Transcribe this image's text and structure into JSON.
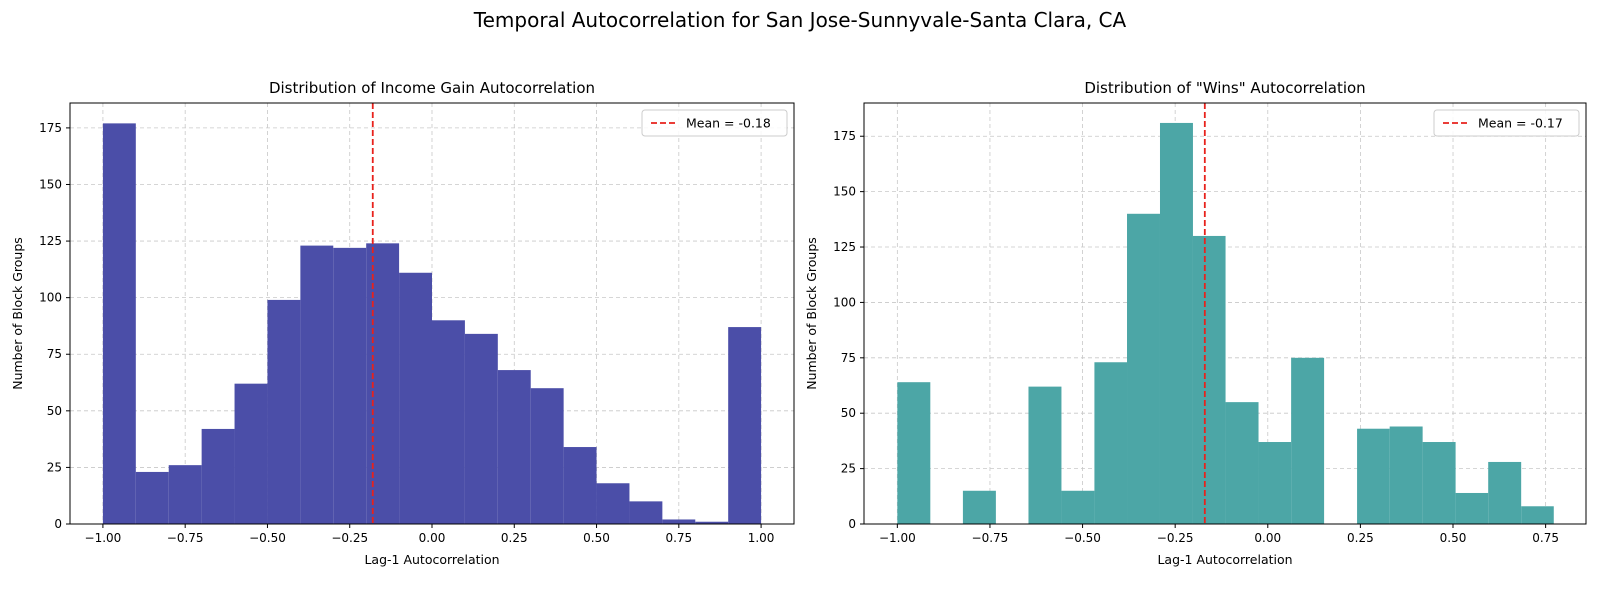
{
  "figure": {
    "title": "Temporal Autocorrelation for San Jose-Sunnyvale-Santa Clara, CA"
  },
  "chart_data": [
    {
      "type": "bar",
      "subtype": "histogram",
      "title": "Distribution of Income Gain Autocorrelation",
      "xlabel": "Lag-1 Autocorrelation",
      "ylabel": "Number of Block Groups",
      "xlim": [
        -1.1,
        1.1
      ],
      "ylim": [
        0,
        186
      ],
      "xticks": [
        -1.0,
        -0.75,
        -0.5,
        -0.25,
        0.0,
        0.25,
        0.5,
        0.75,
        1.0
      ],
      "xtick_labels": [
        "−1.00",
        "−0.75",
        "−0.50",
        "−0.25",
        "0.00",
        "0.25",
        "0.50",
        "0.75",
        "1.00"
      ],
      "yticks": [
        0,
        25,
        50,
        75,
        100,
        125,
        150,
        175
      ],
      "grid": true,
      "bin_edges": [
        -1.0,
        -0.9,
        -0.8,
        -0.7,
        -0.6,
        -0.5,
        -0.4,
        -0.3,
        -0.2,
        -0.1,
        0.0,
        0.1,
        0.2,
        0.3,
        0.4,
        0.5,
        0.6,
        0.7,
        0.8,
        0.9,
        1.0
      ],
      "values": [
        177,
        23,
        26,
        42,
        62,
        99,
        123,
        122,
        124,
        111,
        90,
        84,
        68,
        60,
        34,
        18,
        10,
        2,
        1,
        87
      ],
      "bar_color": "#4b4ea8",
      "mean_line": {
        "x": -0.18,
        "label": "Mean = -0.18",
        "color": "#e8221c"
      },
      "legend_position": "upper right"
    },
    {
      "type": "bar",
      "subtype": "histogram",
      "title": "Distribution of \"Wins\" Autocorrelation",
      "xlabel": "Lag-1 Autocorrelation",
      "ylabel": "Number of Block Groups",
      "xlim": [
        -1.09,
        0.859
      ],
      "ylim": [
        0,
        190
      ],
      "xticks": [
        -1.0,
        -0.75,
        -0.5,
        -0.25,
        0.0,
        0.25,
        0.5,
        0.75
      ],
      "xtick_labels": [
        "−1.00",
        "−0.75",
        "−0.50",
        "−0.25",
        "0.00",
        "0.25",
        "0.50",
        "0.75"
      ],
      "yticks": [
        0,
        25,
        50,
        75,
        100,
        125,
        150,
        175
      ],
      "grid": true,
      "bin_edges": [
        -1.0,
        -0.911,
        -0.823,
        -0.734,
        -0.646,
        -0.557,
        -0.468,
        -0.38,
        -0.291,
        -0.202,
        -0.114,
        -0.025,
        0.063,
        0.152,
        0.241,
        0.329,
        0.418,
        0.507,
        0.595,
        0.684,
        0.772
      ],
      "values": [
        64,
        0,
        15,
        0,
        62,
        15,
        73,
        140,
        181,
        130,
        55,
        37,
        75,
        0,
        43,
        44,
        37,
        14,
        28,
        8
      ],
      "bar_color": "#4ca6a6",
      "mean_line": {
        "x": -0.17,
        "label": "Mean = -0.17",
        "color": "#e8221c"
      },
      "legend_position": "upper right"
    }
  ]
}
